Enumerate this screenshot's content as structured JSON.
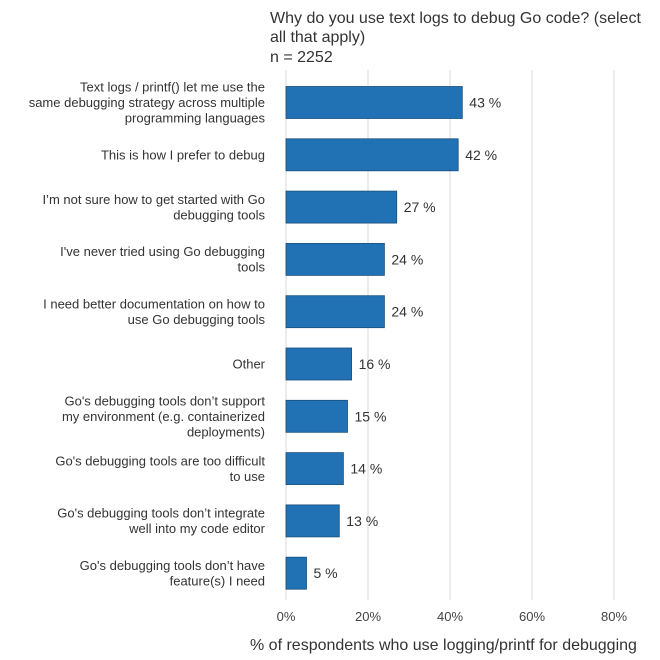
{
  "chart_data": {
    "type": "bar",
    "orientation": "horizontal",
    "title": "Why do you use text logs to debug Go code? (select all that apply)",
    "subtitle": "n = 2252",
    "xlabel": "% of respondents who use logging/printf for debugging",
    "ylabel": "",
    "xlim": [
      0,
      80
    ],
    "xticks": [
      0,
      20,
      40,
      60,
      80
    ],
    "xtick_labels": [
      "0%",
      "20%",
      "40%",
      "60%",
      "80%"
    ],
    "grid": true,
    "bar_color": "#2171b5",
    "categories": [
      "Text logs / printf() let me use the same debugging strategy across multiple programming languages",
      "This is how I prefer to debug",
      "I’m not sure how to get started with Go debugging tools",
      "I've never tried using Go debugging tools",
      "I need better documentation on how to use Go debugging tools",
      "Other",
      "Go's debugging tools don’t support my environment (e.g. containerized deployments)",
      "Go's debugging tools are too difficult to use",
      "Go's debugging tools don’t integrate well into my code editor",
      "Go's debugging tools don’t have feature(s) I need"
    ],
    "category_lines": [
      [
        "Text logs / printf() let me use the",
        "same debugging strategy across multiple",
        "programming languages"
      ],
      [
        "This is how I prefer to debug"
      ],
      [
        "I’m not sure how to get started with Go",
        "debugging tools"
      ],
      [
        "I've never tried using Go debugging",
        "tools"
      ],
      [
        "I need better documentation on how to",
        "use Go debugging tools"
      ],
      [
        "Other"
      ],
      [
        "Go's debugging tools don’t support",
        "my environment (e.g. containerized",
        "deployments)"
      ],
      [
        "Go's debugging tools are too difficult",
        "to use"
      ],
      [
        "Go's debugging tools don’t integrate",
        "well into my code editor"
      ],
      [
        "Go's debugging tools don’t have",
        "feature(s) I need"
      ]
    ],
    "values": [
      43,
      42,
      27,
      24,
      24,
      16,
      15,
      14,
      13,
      5
    ],
    "value_labels": [
      "43 %",
      "42 %",
      "27 %",
      "24 %",
      "24 %",
      "16 %",
      "15 %",
      "14 %",
      "13 %",
      "5 %"
    ]
  }
}
